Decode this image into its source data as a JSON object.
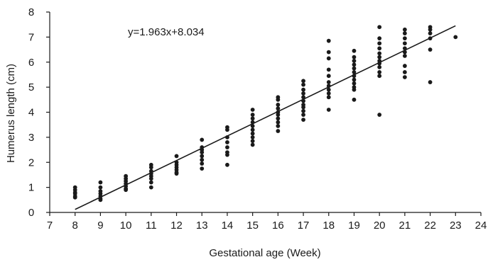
{
  "chart_data": {
    "type": "scatter",
    "xlabel": "Gestational age (Week)",
    "ylabel": "Humerus  length (cm)",
    "xlim": [
      7,
      24
    ],
    "ylim": [
      0,
      8
    ],
    "x_ticks": [
      "7",
      "8",
      "9",
      "10",
      "11",
      "12",
      "13",
      "14",
      "15",
      "16",
      "17",
      "18",
      "19",
      "20",
      "21",
      "22",
      "23",
      "24"
    ],
    "y_ticks": [
      "0",
      "1",
      "2",
      "3",
      "4",
      "5",
      "6",
      "7",
      "8"
    ],
    "annotation": "y=1.963x+8.034",
    "grid": false,
    "legend": "none",
    "marker_color": "#1a1a1a",
    "fit_line": {
      "x": [
        8,
        23
      ],
      "y": [
        0.12,
        7.45
      ]
    },
    "points": [
      {
        "x": 8,
        "y": 1.0
      },
      {
        "x": 8,
        "y": 0.9
      },
      {
        "x": 8,
        "y": 0.8
      },
      {
        "x": 8,
        "y": 0.75
      },
      {
        "x": 8,
        "y": 0.65
      },
      {
        "x": 8,
        "y": 0.6
      },
      {
        "x": 9,
        "y": 1.2
      },
      {
        "x": 9,
        "y": 1.0
      },
      {
        "x": 9,
        "y": 0.85
      },
      {
        "x": 9,
        "y": 0.75
      },
      {
        "x": 9,
        "y": 0.65
      },
      {
        "x": 9,
        "y": 0.55
      },
      {
        "x": 9,
        "y": 0.5
      },
      {
        "x": 10,
        "y": 1.45
      },
      {
        "x": 10,
        "y": 1.35
      },
      {
        "x": 10,
        "y": 1.25
      },
      {
        "x": 10,
        "y": 1.15
      },
      {
        "x": 10,
        "y": 1.05
      },
      {
        "x": 10,
        "y": 0.95
      },
      {
        "x": 10,
        "y": 0.9
      },
      {
        "x": 11,
        "y": 1.9
      },
      {
        "x": 11,
        "y": 1.8
      },
      {
        "x": 11,
        "y": 1.65
      },
      {
        "x": 11,
        "y": 1.55
      },
      {
        "x": 11,
        "y": 1.45
      },
      {
        "x": 11,
        "y": 1.35
      },
      {
        "x": 11,
        "y": 1.2
      },
      {
        "x": 11,
        "y": 1.0
      },
      {
        "x": 12,
        "y": 2.25
      },
      {
        "x": 12,
        "y": 2.0
      },
      {
        "x": 12,
        "y": 1.9
      },
      {
        "x": 12,
        "y": 1.8
      },
      {
        "x": 12,
        "y": 1.7
      },
      {
        "x": 12,
        "y": 1.6
      },
      {
        "x": 12,
        "y": 1.55
      },
      {
        "x": 13,
        "y": 2.9
      },
      {
        "x": 13,
        "y": 2.6
      },
      {
        "x": 13,
        "y": 2.5
      },
      {
        "x": 13,
        "y": 2.4
      },
      {
        "x": 13,
        "y": 2.25
      },
      {
        "x": 13,
        "y": 2.1
      },
      {
        "x": 13,
        "y": 1.95
      },
      {
        "x": 13,
        "y": 1.75
      },
      {
        "x": 14,
        "y": 3.4
      },
      {
        "x": 14,
        "y": 3.3
      },
      {
        "x": 14,
        "y": 3.0
      },
      {
        "x": 14,
        "y": 2.8
      },
      {
        "x": 14,
        "y": 2.6
      },
      {
        "x": 14,
        "y": 2.4
      },
      {
        "x": 14,
        "y": 2.3
      },
      {
        "x": 14,
        "y": 1.9
      },
      {
        "x": 15,
        "y": 4.1
      },
      {
        "x": 15,
        "y": 3.9
      },
      {
        "x": 15,
        "y": 3.75
      },
      {
        "x": 15,
        "y": 3.6
      },
      {
        "x": 15,
        "y": 3.45
      },
      {
        "x": 15,
        "y": 3.3
      },
      {
        "x": 15,
        "y": 3.15
      },
      {
        "x": 15,
        "y": 3.0
      },
      {
        "x": 15,
        "y": 2.85
      },
      {
        "x": 15,
        "y": 2.7
      },
      {
        "x": 16,
        "y": 4.6
      },
      {
        "x": 16,
        "y": 4.5
      },
      {
        "x": 16,
        "y": 4.3
      },
      {
        "x": 16,
        "y": 4.15
      },
      {
        "x": 16,
        "y": 4.0
      },
      {
        "x": 16,
        "y": 3.9
      },
      {
        "x": 16,
        "y": 3.75
      },
      {
        "x": 16,
        "y": 3.6
      },
      {
        "x": 16,
        "y": 3.45
      },
      {
        "x": 16,
        "y": 3.25
      },
      {
        "x": 17,
        "y": 5.25
      },
      {
        "x": 17,
        "y": 5.1
      },
      {
        "x": 17,
        "y": 4.9
      },
      {
        "x": 17,
        "y": 4.75
      },
      {
        "x": 17,
        "y": 4.6
      },
      {
        "x": 17,
        "y": 4.45
      },
      {
        "x": 17,
        "y": 4.3
      },
      {
        "x": 17,
        "y": 4.2
      },
      {
        "x": 17,
        "y": 4.05
      },
      {
        "x": 17,
        "y": 3.9
      },
      {
        "x": 17,
        "y": 3.7
      },
      {
        "x": 18,
        "y": 6.85
      },
      {
        "x": 18,
        "y": 6.4
      },
      {
        "x": 18,
        "y": 6.15
      },
      {
        "x": 18,
        "y": 5.7
      },
      {
        "x": 18,
        "y": 5.45
      },
      {
        "x": 18,
        "y": 5.2
      },
      {
        "x": 18,
        "y": 5.05
      },
      {
        "x": 18,
        "y": 4.9
      },
      {
        "x": 18,
        "y": 4.75
      },
      {
        "x": 18,
        "y": 4.6
      },
      {
        "x": 18,
        "y": 4.1
      },
      {
        "x": 19,
        "y": 6.45
      },
      {
        "x": 19,
        "y": 6.2
      },
      {
        "x": 19,
        "y": 6.05
      },
      {
        "x": 19,
        "y": 5.9
      },
      {
        "x": 19,
        "y": 5.75
      },
      {
        "x": 19,
        "y": 5.6
      },
      {
        "x": 19,
        "y": 5.45
      },
      {
        "x": 19,
        "y": 5.3
      },
      {
        "x": 19,
        "y": 5.15
      },
      {
        "x": 19,
        "y": 5.0
      },
      {
        "x": 19,
        "y": 4.9
      },
      {
        "x": 19,
        "y": 4.5
      },
      {
        "x": 20,
        "y": 7.4
      },
      {
        "x": 20,
        "y": 6.95
      },
      {
        "x": 20,
        "y": 6.75
      },
      {
        "x": 20,
        "y": 6.55
      },
      {
        "x": 20,
        "y": 6.35
      },
      {
        "x": 20,
        "y": 6.2
      },
      {
        "x": 20,
        "y": 6.05
      },
      {
        "x": 20,
        "y": 5.95
      },
      {
        "x": 20,
        "y": 5.8
      },
      {
        "x": 20,
        "y": 5.6
      },
      {
        "x": 20,
        "y": 5.45
      },
      {
        "x": 20,
        "y": 3.9
      },
      {
        "x": 21,
        "y": 7.3
      },
      {
        "x": 21,
        "y": 7.15
      },
      {
        "x": 21,
        "y": 6.95
      },
      {
        "x": 21,
        "y": 6.75
      },
      {
        "x": 21,
        "y": 6.55
      },
      {
        "x": 21,
        "y": 6.4
      },
      {
        "x": 21,
        "y": 6.25
      },
      {
        "x": 21,
        "y": 5.85
      },
      {
        "x": 21,
        "y": 5.6
      },
      {
        "x": 21,
        "y": 5.4
      },
      {
        "x": 22,
        "y": 7.4
      },
      {
        "x": 22,
        "y": 7.3
      },
      {
        "x": 22,
        "y": 7.15
      },
      {
        "x": 22,
        "y": 6.95
      },
      {
        "x": 22,
        "y": 6.5
      },
      {
        "x": 22,
        "y": 5.2
      },
      {
        "x": 23,
        "y": 7.0
      }
    ]
  }
}
